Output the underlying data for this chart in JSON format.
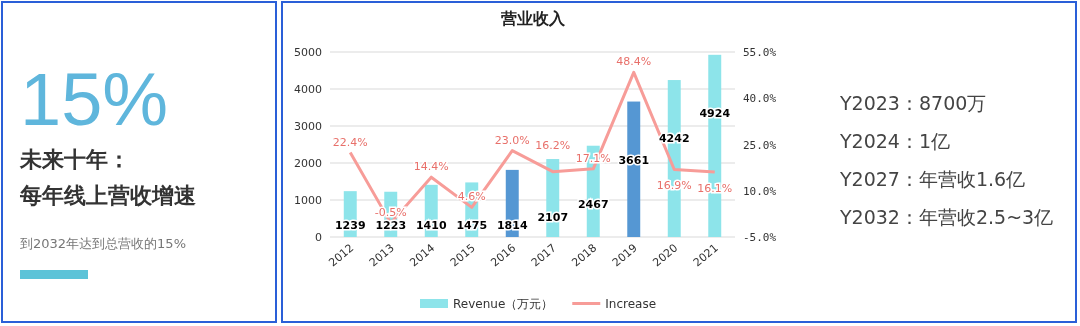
{
  "chart_data": [
    {
      "type": "other",
      "title": "15%",
      "annotations": [
        "未来十年：",
        "每年线上营收增速",
        "到2032年达到总营收的15%"
      ]
    },
    {
      "type": "bar",
      "title": "营业收入",
      "categories": [
        "2012",
        "2013",
        "2014",
        "2015",
        "2016",
        "2017",
        "2018",
        "2019",
        "2020",
        "2021"
      ],
      "series": [
        {
          "name": "Revenue（万元）",
          "type": "bar",
          "colors": [
            "#8de4ea",
            "#8de4ea",
            "#8de4ea",
            "#8de4ea",
            "#5597d3",
            "#8de4ea",
            "#8de4ea",
            "#5597d3",
            "#8de4ea",
            "#8de4ea"
          ],
          "values": [
            1239,
            1223,
            1410,
            1475,
            1814,
            2107,
            2467,
            3661,
            4242,
            4924
          ],
          "value_labels": [
            "1239",
            "1223",
            "1410",
            "1475",
            "1814",
            "2107",
            "2467",
            "3661",
            "4242",
            "4924"
          ]
        },
        {
          "name": "Increase",
          "type": "line",
          "axis": "y2",
          "color": "#f79c98",
          "values": [
            22.4,
            -0.5,
            14.4,
            4.6,
            23.0,
            16.2,
            17.1,
            48.4,
            16.9,
            16.1
          ],
          "value_labels": [
            "22.4%",
            "-0.5%",
            "14.4%",
            "4.6%",
            "23.0%",
            "16.2%",
            "17.1%",
            "48.4%",
            "16.9%",
            "16.1%"
          ]
        }
      ],
      "ylim": [
        0,
        5000
      ],
      "yticks": [
        0,
        1000,
        2000,
        3000,
        4000,
        5000
      ],
      "y2lim": [
        -5,
        55
      ],
      "y2ticks": [
        {
          "value": -5,
          "label": "-5.0%"
        },
        {
          "value": 10,
          "label": "10.0%"
        },
        {
          "value": 25,
          "label": "25.0%"
        },
        {
          "value": 40,
          "label": "40.0%"
        },
        {
          "value": 55,
          "label": "55.0%"
        }
      ],
      "grid": "y",
      "legend": "bottom"
    },
    {
      "type": "other",
      "annotations": [
        "Y2023：8700万",
        "Y2024：1亿",
        "Y2027：年营收1.6亿",
        "Y2032：年营收2.5~3亿"
      ]
    }
  ]
}
